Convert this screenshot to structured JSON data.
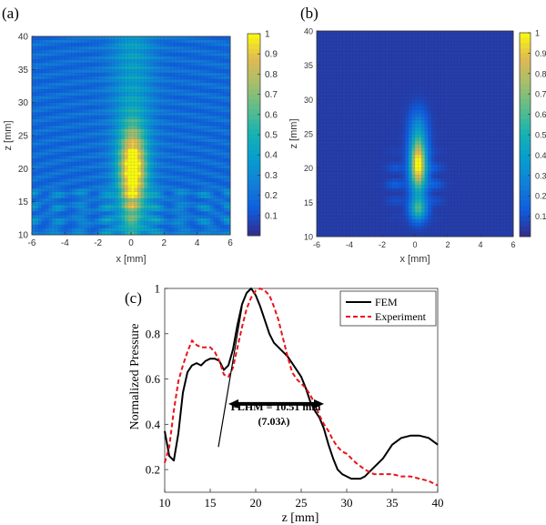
{
  "chart_data": [
    {
      "panel": "(a)",
      "type": "heatmap",
      "xlabel": "x [mm]",
      "ylabel": "z [mm]",
      "xlim": [
        -6,
        6
      ],
      "ylim": [
        10,
        40
      ],
      "xticks": [
        "-6",
        "-4",
        "-2",
        "0",
        "2",
        "4",
        "6"
      ],
      "yticks": [
        "10",
        "15",
        "20",
        "25",
        "30",
        "35",
        "40"
      ],
      "colorbar": {
        "min": 0,
        "max": 1,
        "ticks": [
          "0.1",
          "0.2",
          "0.3",
          "0.4",
          "0.5",
          "0.6",
          "0.7",
          "0.8",
          "0.9",
          "1"
        ]
      },
      "focus": {
        "x": 0.1,
        "z": 20,
        "peak": 1.0
      },
      "field": {
        "sx": 0.55,
        "sz": 4.2,
        "background": 0.25,
        "near_field_z_max": 17,
        "fringe_period_x": 1.6
      }
    },
    {
      "panel": "(b)",
      "type": "heatmap",
      "xlabel": "x [mm]",
      "ylabel": "z [mm]",
      "xlim": [
        -6,
        6
      ],
      "ylim": [
        10,
        40
      ],
      "xticks": [
        "-6",
        "-4",
        "-2",
        "0",
        "2",
        "4",
        "6"
      ],
      "yticks": [
        "10",
        "15",
        "20",
        "25",
        "30",
        "35",
        "40"
      ],
      "colorbar": {
        "min": 0,
        "max": 1,
        "ticks": [
          "0.1",
          "0.2",
          "0.3",
          "0.4",
          "0.5",
          "0.6",
          "0.7",
          "0.8",
          "0.9",
          "1"
        ]
      },
      "focus": {
        "x": 0.2,
        "z": 20.5,
        "peak": 1.0
      },
      "field": {
        "sx": 0.35,
        "sz": 2.8,
        "background": 0.05,
        "secondary_lobe_z": 14,
        "secondary_lobe_peak": 0.5
      }
    },
    {
      "panel": "(c)",
      "type": "line",
      "xlabel": "z [mm]",
      "ylabel": "Normalized Pressure",
      "xlim": [
        10,
        40
      ],
      "ylim": [
        0.1,
        1
      ],
      "xticks": [
        "10",
        "15",
        "20",
        "25",
        "30",
        "35",
        "40"
      ],
      "yticks": [
        "0.2",
        "0.4",
        "0.6",
        "0.8",
        "1"
      ],
      "legend_position": "top-right",
      "annotation": {
        "line1": "FLHM = 10.51 mm",
        "line2": "(7.03λ)",
        "arrow_from": 17,
        "arrow_to": 27.5,
        "arrow_y": 0.49
      },
      "series": [
        {
          "name": "FEM",
          "color": "#000000",
          "dash": "solid",
          "x": [
            10,
            10.5,
            11,
            11.5,
            12,
            12.5,
            13,
            13.5,
            14,
            14.5,
            15,
            15.5,
            16,
            16.5,
            17,
            17.5,
            18,
            18.5,
            19,
            19.5,
            20,
            20.5,
            21,
            21.5,
            22,
            22.5,
            23,
            23.5,
            24,
            24.5,
            25,
            25.5,
            26,
            26.5,
            27,
            27.5,
            28,
            28.5,
            29,
            29.5,
            30,
            30.5,
            31,
            31.5,
            32,
            32.5,
            33,
            34,
            35,
            36,
            37,
            38,
            39,
            40
          ],
          "y": [
            0.37,
            0.26,
            0.24,
            0.36,
            0.54,
            0.63,
            0.66,
            0.67,
            0.66,
            0.68,
            0.69,
            0.69,
            0.68,
            0.64,
            0.66,
            0.73,
            0.84,
            0.93,
            0.98,
            1.0,
            0.97,
            0.92,
            0.86,
            0.8,
            0.76,
            0.74,
            0.72,
            0.7,
            0.67,
            0.64,
            0.61,
            0.56,
            0.5,
            0.46,
            0.43,
            0.38,
            0.31,
            0.25,
            0.2,
            0.18,
            0.17,
            0.16,
            0.16,
            0.16,
            0.17,
            0.19,
            0.21,
            0.25,
            0.31,
            0.34,
            0.35,
            0.35,
            0.34,
            0.31
          ]
        },
        {
          "name": "Experiment",
          "color": "#e8141b",
          "dash": "dashed",
          "x": [
            10,
            10.5,
            11,
            11.5,
            12,
            12.5,
            13,
            13.5,
            14,
            14.5,
            15,
            15.5,
            16,
            16.5,
            17,
            17.5,
            18,
            18.5,
            19,
            19.5,
            20,
            20.5,
            21,
            21.5,
            22,
            22.5,
            23,
            23.5,
            24,
            24.5,
            25,
            25.5,
            26,
            26.5,
            27,
            27.5,
            28,
            28.5,
            29,
            29.5,
            30,
            30.5,
            31,
            32,
            33,
            34,
            35,
            36,
            37,
            38,
            39,
            40
          ],
          "y": [
            0.23,
            0.3,
            0.46,
            0.59,
            0.66,
            0.72,
            0.77,
            0.75,
            0.74,
            0.74,
            0.74,
            0.72,
            0.68,
            0.62,
            0.61,
            0.65,
            0.74,
            0.83,
            0.91,
            0.96,
            0.99,
            1.0,
            0.99,
            0.97,
            0.92,
            0.86,
            0.78,
            0.7,
            0.63,
            0.6,
            0.58,
            0.56,
            0.53,
            0.49,
            0.44,
            0.4,
            0.37,
            0.33,
            0.3,
            0.28,
            0.27,
            0.25,
            0.23,
            0.2,
            0.18,
            0.18,
            0.18,
            0.17,
            0.17,
            0.16,
            0.15,
            0.13
          ]
        }
      ],
      "tangent_line": {
        "x": [
          15.9,
          18.5
        ],
        "y": [
          0.3,
          0.92
        ]
      }
    }
  ]
}
